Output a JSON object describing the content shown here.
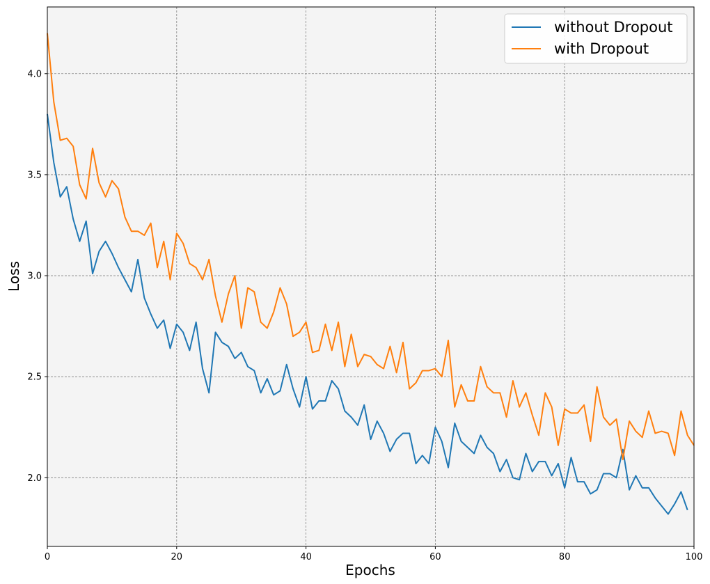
{
  "chart_data": {
    "type": "line",
    "title": "",
    "xlabel": "Epochs",
    "ylabel": "Loss",
    "xlim": [
      0,
      100
    ],
    "ylim": [
      1.66,
      4.33
    ],
    "xticks": [
      0,
      20,
      40,
      60,
      80,
      100
    ],
    "yticks": [
      2.0,
      2.5,
      3.0,
      3.5,
      4.0
    ],
    "grid": true,
    "legend_position": "top-right",
    "background": "#f4f4f4",
    "series": [
      {
        "name": "without Dropout",
        "color": "#1f77b4",
        "x": [
          0,
          1,
          2,
          3,
          4,
          5,
          6,
          7,
          8,
          9,
          10,
          11,
          12,
          13,
          14,
          15,
          16,
          17,
          18,
          19,
          20,
          21,
          22,
          23,
          24,
          25,
          26,
          27,
          28,
          29,
          30,
          31,
          32,
          33,
          34,
          35,
          36,
          37,
          38,
          39,
          40,
          41,
          42,
          43,
          44,
          45,
          46,
          47,
          48,
          49,
          50,
          51,
          52,
          53,
          54,
          55,
          56,
          57,
          58,
          59,
          60,
          61,
          62,
          63,
          64,
          65,
          66,
          67,
          68,
          69,
          70,
          71,
          72,
          73,
          74,
          75,
          76,
          77,
          78,
          79,
          80,
          81,
          82,
          83,
          84,
          85,
          86,
          87,
          88,
          89,
          90,
          91,
          92,
          93,
          94,
          95,
          96,
          97,
          98,
          99
        ],
        "values": [
          3.8,
          3.56,
          3.39,
          3.44,
          3.28,
          3.17,
          3.27,
          3.01,
          3.12,
          3.17,
          3.11,
          3.04,
          2.98,
          2.92,
          3.08,
          2.89,
          2.81,
          2.74,
          2.78,
          2.64,
          2.76,
          2.72,
          2.63,
          2.77,
          2.54,
          2.42,
          2.72,
          2.67,
          2.65,
          2.59,
          2.62,
          2.55,
          2.53,
          2.42,
          2.49,
          2.41,
          2.43,
          2.56,
          2.44,
          2.35,
          2.5,
          2.34,
          2.38,
          2.38,
          2.48,
          2.44,
          2.33,
          2.3,
          2.26,
          2.36,
          2.19,
          2.28,
          2.22,
          2.13,
          2.19,
          2.22,
          2.22,
          2.07,
          2.11,
          2.07,
          2.25,
          2.18,
          2.05,
          2.27,
          2.18,
          2.15,
          2.12,
          2.21,
          2.15,
          2.12,
          2.03,
          2.09,
          2.0,
          1.99,
          2.12,
          2.03,
          2.08,
          2.08,
          2.01,
          2.07,
          1.95,
          2.1,
          1.98,
          1.98,
          1.92,
          1.94,
          2.02,
          2.02,
          2.0,
          2.14,
          1.94,
          2.01,
          1.95,
          1.95,
          1.9,
          1.86,
          1.82,
          1.87,
          1.93,
          1.84
        ]
      },
      {
        "name": "with Dropout",
        "color": "#ff7f0e",
        "x": [
          0,
          1,
          2,
          3,
          4,
          5,
          6,
          7,
          8,
          9,
          10,
          11,
          12,
          13,
          14,
          15,
          16,
          17,
          18,
          19,
          20,
          21,
          22,
          23,
          24,
          25,
          26,
          27,
          28,
          29,
          30,
          31,
          32,
          33,
          34,
          35,
          36,
          37,
          38,
          39,
          40,
          41,
          42,
          43,
          44,
          45,
          46,
          47,
          48,
          49,
          50,
          51,
          52,
          53,
          54,
          55,
          56,
          57,
          58,
          59,
          60,
          61,
          62,
          63,
          64,
          65,
          66,
          67,
          68,
          69,
          70,
          71,
          72,
          73,
          74,
          75,
          76,
          77,
          78,
          79,
          80,
          81,
          82,
          83,
          84,
          85,
          86,
          87,
          88,
          89,
          90,
          91,
          92,
          93,
          94,
          95,
          96,
          97,
          98,
          99,
          100
        ],
        "values": [
          4.2,
          3.86,
          3.67,
          3.68,
          3.64,
          3.45,
          3.38,
          3.63,
          3.46,
          3.39,
          3.47,
          3.43,
          3.29,
          3.22,
          3.22,
          3.2,
          3.26,
          3.04,
          3.17,
          2.98,
          3.21,
          3.16,
          3.06,
          3.04,
          2.98,
          3.08,
          2.9,
          2.77,
          2.91,
          3.0,
          2.74,
          2.94,
          2.92,
          2.77,
          2.74,
          2.82,
          2.94,
          2.86,
          2.7,
          2.72,
          2.77,
          2.62,
          2.63,
          2.76,
          2.63,
          2.77,
          2.55,
          2.71,
          2.55,
          2.61,
          2.6,
          2.56,
          2.54,
          2.65,
          2.52,
          2.67,
          2.44,
          2.47,
          2.53,
          2.53,
          2.54,
          2.5,
          2.68,
          2.35,
          2.46,
          2.38,
          2.38,
          2.55,
          2.45,
          2.42,
          2.42,
          2.3,
          2.48,
          2.35,
          2.42,
          2.31,
          2.21,
          2.42,
          2.35,
          2.16,
          2.34,
          2.32,
          2.32,
          2.36,
          2.18,
          2.45,
          2.3,
          2.26,
          2.29,
          2.09,
          2.28,
          2.23,
          2.2,
          2.33,
          2.22,
          2.23,
          2.22,
          2.11,
          2.33,
          2.21,
          2.16
        ]
      }
    ]
  }
}
